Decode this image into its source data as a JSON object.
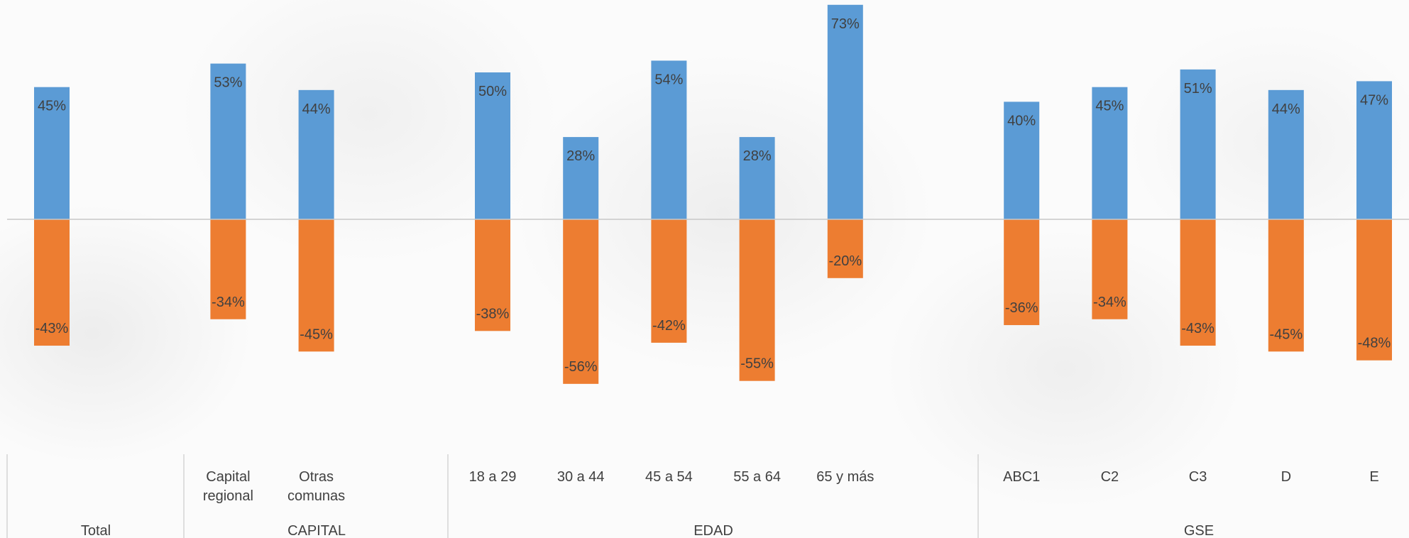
{
  "chart_data": {
    "type": "bar",
    "stacked": "diverging",
    "title": "",
    "xlabel": "",
    "ylabel": "",
    "ylim": [
      -60,
      75
    ],
    "grid": false,
    "legend": "none",
    "colors": {
      "positive": "#5b9bd5",
      "negative": "#ed7d31"
    },
    "categories": [
      {
        "lines": [],
        "group": "Total"
      },
      {
        "lines": [
          "Capital",
          "regional"
        ],
        "group": "CAPITAL"
      },
      {
        "lines": [
          "Otras",
          "comunas"
        ],
        "group": "CAPITAL"
      },
      {
        "lines": [
          "18 a 29"
        ],
        "group": "EDAD"
      },
      {
        "lines": [
          "30 a 44"
        ],
        "group": "EDAD"
      },
      {
        "lines": [
          "45 a 54"
        ],
        "group": "EDAD"
      },
      {
        "lines": [
          "55 a 64"
        ],
        "group": "EDAD"
      },
      {
        "lines": [
          "65 y más"
        ],
        "group": "EDAD"
      },
      {
        "lines": [
          "ABC1"
        ],
        "group": "GSE"
      },
      {
        "lines": [
          "C2"
        ],
        "group": "GSE"
      },
      {
        "lines": [
          "C3"
        ],
        "group": "GSE"
      },
      {
        "lines": [
          "D"
        ],
        "group": "GSE"
      },
      {
        "lines": [
          "E"
        ],
        "group": "GSE"
      }
    ],
    "groups": [
      "Total",
      "CAPITAL",
      "EDAD",
      "GSE"
    ],
    "series": [
      {
        "values": [
          45,
          53,
          44,
          50,
          28,
          54,
          28,
          73,
          40,
          45,
          51,
          44,
          47
        ],
        "labels": [
          "45%",
          "53%",
          "44%",
          "50%",
          "28%",
          "54%",
          "28%",
          "73%",
          "40%",
          "45%",
          "51%",
          "44%",
          "47%"
        ]
      },
      {
        "values": [
          -43,
          -34,
          -45,
          -38,
          -56,
          -42,
          -55,
          -20,
          -36,
          -34,
          -43,
          -45,
          -48
        ],
        "labels": [
          "-43%",
          "-34%",
          "-45%",
          "-38%",
          "-56%",
          "-42%",
          "-55%",
          "-20%",
          "-36%",
          "-34%",
          "-43%",
          "-45%",
          "-48%"
        ]
      }
    ]
  }
}
